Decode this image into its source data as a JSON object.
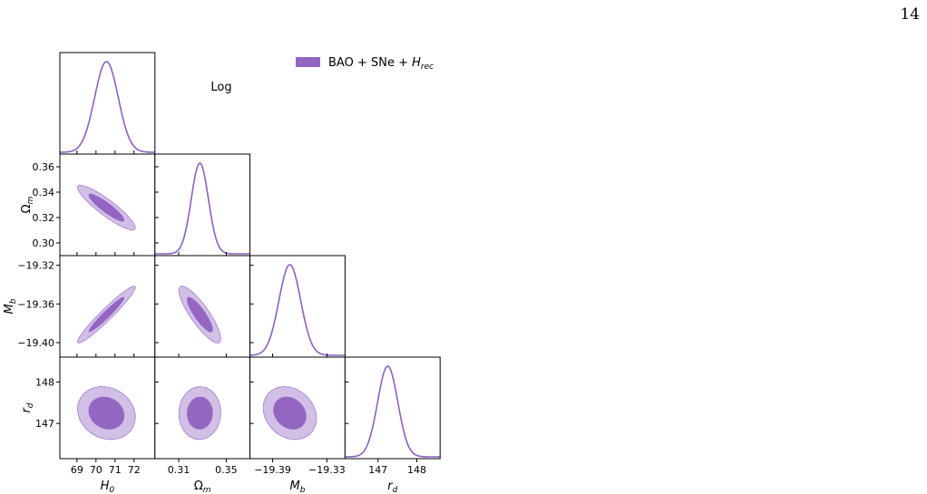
{
  "page_number": "14",
  "chart_data": {
    "type": "corner",
    "annotation": "Log",
    "colors": {
      "line": "#8e5fbf",
      "fill_inner": "#9466c2",
      "fill_outer": "#d2bfe6",
      "outer_edge": "#a07ed0"
    },
    "legend": {
      "placement": "top-right",
      "label": "BAO + SNe + ",
      "label_math": "H",
      "label_math_sub": "rec"
    },
    "parameters": [
      {
        "name": "H0",
        "symbol": "H",
        "sub": "0",
        "mean": 70.55,
        "sigma": 0.62,
        "range": [
          68.1,
          73.1
        ],
        "ticks": [
          69,
          70,
          71,
          72
        ],
        "tick_labels": [
          "69",
          "70",
          "71",
          "72"
        ]
      },
      {
        "name": "Omega_m",
        "symbol": "Ω",
        "sub": "m",
        "mean": 0.3278,
        "sigma": 0.0072,
        "range": [
          0.29,
          0.37
        ],
        "ticks": [
          0.3,
          0.32,
          0.34,
          0.36
        ],
        "tick_labels": [
          "0.30",
          "0.32",
          "0.34",
          "0.36"
        ],
        "bottom_ticks": [
          0.31,
          0.35
        ],
        "bottom_tick_labels": [
          "0.31",
          "0.35"
        ]
      },
      {
        "name": "M_b",
        "symbol": "M",
        "sub": "b",
        "mean": -19.371,
        "sigma": 0.012,
        "range": [
          -19.415,
          -19.31
        ],
        "ticks": [
          -19.32,
          -19.36,
          -19.4
        ],
        "tick_labels": [
          "−19.32",
          "−19.36",
          "−19.40"
        ],
        "bottom_ticks": [
          -19.39,
          -19.33
        ],
        "bottom_tick_labels": [
          "−19.39",
          "−19.33"
        ]
      },
      {
        "name": "r_d",
        "symbol": "r",
        "sub": "d",
        "mean": 147.25,
        "sigma": 0.26,
        "range": [
          146.15,
          148.6
        ],
        "ticks": [
          147,
          148
        ],
        "tick_labels": [
          "147",
          "148"
        ]
      }
    ],
    "correlations": [
      {
        "pair": [
          "H0",
          "Omega_m"
        ],
        "rho": -0.9
      },
      {
        "pair": [
          "H0",
          "M_b"
        ],
        "rho": 0.96
      },
      {
        "pair": [
          "Omega_m",
          "M_b"
        ],
        "rho": -0.85
      },
      {
        "pair": [
          "H0",
          "r_d"
        ],
        "rho": -0.15
      },
      {
        "pair": [
          "Omega_m",
          "r_d"
        ],
        "rho": 0.02
      },
      {
        "pair": [
          "M_b",
          "r_d"
        ],
        "rho": -0.2
      }
    ]
  }
}
